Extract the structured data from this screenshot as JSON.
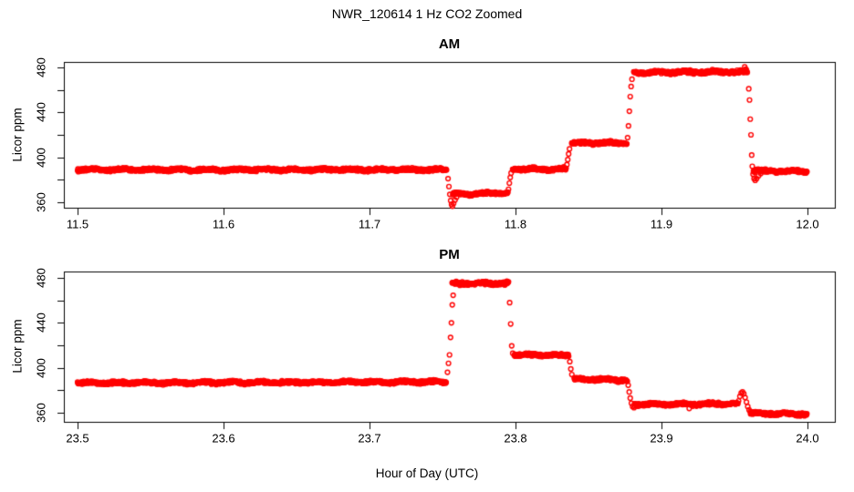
{
  "figure_title": "NWR_120614  1 Hz CO2 Zoomed",
  "axes": {
    "xlabel": "Hour of Day (UTC)",
    "ylabel": "Licor ppm"
  },
  "style": {
    "marker_color": "#FF0000",
    "axis_color": "#000000",
    "background": "#FFFFFF",
    "marker": "open-circle"
  },
  "chart_data": [
    {
      "type": "scatter",
      "panel": "AM",
      "title": "AM",
      "ylabel": "Licor ppm",
      "units": "ppm CO2",
      "sample_rate_hz": 1,
      "x_ticks": [
        11.5,
        11.6,
        11.7,
        11.8,
        11.9,
        12.0
      ],
      "x_tick_labels": [
        "11.5",
        "11.6",
        "11.7",
        "11.8",
        "11.9",
        "12.0"
      ],
      "y_ticks_labeled": [
        360,
        400,
        440,
        480
      ],
      "y_tick_labels": [
        "360",
        "400",
        "440",
        "480"
      ],
      "y_ticks_minor": [
        380,
        420,
        460
      ],
      "xlim": [
        11.49,
        12.02
      ],
      "ylim": [
        355,
        486
      ],
      "plateaus": [
        {
          "t0": 11.5,
          "t1": 11.753,
          "ppm": 389.0,
          "drift": 0.0
        },
        {
          "t0": 11.757,
          "t1": 11.795,
          "ppm": 367.0,
          "drift": 1.5
        },
        {
          "t0": 11.798,
          "t1": 11.835,
          "ppm": 389.5,
          "drift": 0.0
        },
        {
          "t0": 11.8385,
          "t1": 11.8765,
          "ppm": 412.5,
          "drift": 0.5
        },
        {
          "t0": 11.881,
          "t1": 11.959,
          "ppm": 475.5,
          "drift": 0.5,
          "noise": 1.8
        },
        {
          "t0": 11.963,
          "t1": 12.0,
          "ppm": 388.0,
          "drift": -0.5
        }
      ],
      "transition_points": [
        [
          11.7538,
          381.0
        ],
        [
          11.7544,
          374.0
        ],
        [
          11.755,
          367.0
        ],
        [
          11.7556,
          361.5
        ],
        [
          11.7562,
          358.0
        ],
        [
          11.7568,
          356.5
        ],
        [
          11.7576,
          359.0
        ],
        [
          11.7586,
          362.0
        ],
        [
          11.7596,
          364.5
        ],
        [
          11.7952,
          371.5
        ],
        [
          11.7958,
          377.0
        ],
        [
          11.7964,
          382.0
        ],
        [
          11.797,
          386.0
        ],
        [
          11.8352,
          393.5
        ],
        [
          11.8358,
          398.0
        ],
        [
          11.8364,
          403.0
        ],
        [
          11.837,
          407.5
        ],
        [
          11.8768,
          417.5
        ],
        [
          11.8774,
          428.0
        ],
        [
          11.878,
          441.0
        ],
        [
          11.8786,
          454.0
        ],
        [
          11.8792,
          463.0
        ],
        [
          11.8798,
          469.5
        ],
        [
          11.957,
          480.5
        ],
        [
          11.9578,
          478.5
        ],
        [
          11.9598,
          461.0
        ],
        [
          11.9603,
          451.0
        ],
        [
          11.9608,
          434.0
        ],
        [
          11.9613,
          420.0
        ],
        [
          11.9618,
          402.0
        ],
        [
          11.9622,
          392.0
        ],
        [
          11.9627,
          385.0
        ],
        [
          11.9634,
          381.0
        ],
        [
          11.9642,
          379.5
        ],
        [
          11.9652,
          381.0
        ],
        [
          11.9665,
          383.5
        ],
        [
          11.968,
          385.5
        ]
      ]
    },
    {
      "type": "scatter",
      "panel": "PM",
      "title": "PM",
      "ylabel": "Licor ppm",
      "units": "ppm CO2",
      "sample_rate_hz": 1,
      "x_ticks": [
        23.5,
        23.6,
        23.7,
        23.8,
        23.9,
        24.0
      ],
      "x_tick_labels": [
        "23.5",
        "23.6",
        "23.7",
        "23.8",
        "23.9",
        "24.0"
      ],
      "y_ticks_labeled": [
        360,
        400,
        440,
        480
      ],
      "y_tick_labels": [
        "360",
        "400",
        "440",
        "480"
      ],
      "y_ticks_minor": [
        380,
        420,
        460
      ],
      "xlim": [
        23.49,
        24.02
      ],
      "ylim": [
        355,
        486
      ],
      "plateaus": [
        {
          "t0": 23.5,
          "t1": 23.7528,
          "ppm": 386.5,
          "drift": 1.0
        },
        {
          "t0": 23.7566,
          "t1": 23.7955,
          "ppm": 475.0,
          "drift": 0.0,
          "noise": 1.8
        },
        {
          "t0": 23.7992,
          "t1": 23.8368,
          "ppm": 411.5,
          "drift": -0.5
        },
        {
          "t0": 23.8402,
          "t1": 23.8768,
          "ppm": 390.0,
          "drift": -1.0
        },
        {
          "t0": 23.8815,
          "t1": 23.9525,
          "ppm": 367.5,
          "drift": 0.5
        },
        {
          "t0": 23.961,
          "t1": 24.0,
          "ppm": 359.5,
          "drift": -0.5
        }
      ],
      "transition_points": [
        [
          23.7534,
          396.0
        ],
        [
          23.7541,
          404.0
        ],
        [
          23.7548,
          411.5
        ],
        [
          23.7555,
          427.0
        ],
        [
          23.7561,
          440.0
        ],
        [
          23.7567,
          456.0
        ],
        [
          23.7573,
          464.5
        ],
        [
          23.796,
          458.0
        ],
        [
          23.7967,
          439.0
        ],
        [
          23.7974,
          419.5
        ],
        [
          23.7981,
          413.0
        ],
        [
          23.8372,
          405.5
        ],
        [
          23.8379,
          399.0
        ],
        [
          23.8386,
          394.0
        ],
        [
          23.8772,
          384.5
        ],
        [
          23.8779,
          378.5
        ],
        [
          23.8786,
          373.0
        ],
        [
          23.8794,
          368.5
        ],
        [
          23.8802,
          365.5
        ],
        [
          23.8812,
          364.5
        ],
        [
          23.919,
          363.8
        ],
        [
          23.9528,
          370.5
        ],
        [
          23.9537,
          374.5
        ],
        [
          23.9546,
          377.5
        ],
        [
          23.9555,
          378.5
        ],
        [
          23.9564,
          377.0
        ],
        [
          23.9573,
          373.5
        ],
        [
          23.9582,
          369.5
        ],
        [
          23.9591,
          365.5
        ],
        [
          23.96,
          362.5
        ],
        [
          23.9608,
          361.0
        ]
      ]
    }
  ]
}
